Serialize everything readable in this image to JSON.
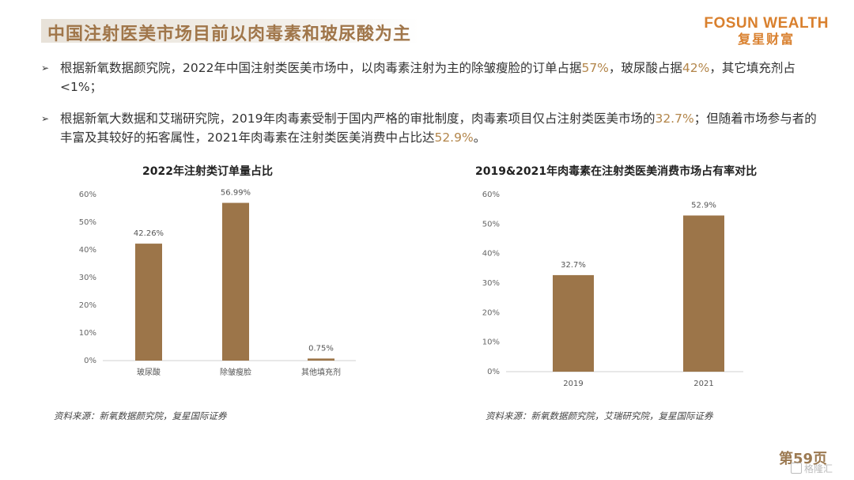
{
  "header": {
    "title": "中国注射医美市场目前以肉毒素和玻尿酸为主",
    "logo_en": "FOSUN WEALTH",
    "logo_cn": "复星财富"
  },
  "bullets": [
    {
      "parts": [
        {
          "text": "根据新氧数据颜究院，2022年中国注射类医美市场中，以肉毒素注射为主的除皱瘦脸的订单占据",
          "hl": false
        },
        {
          "text": "57%",
          "hl": true
        },
        {
          "text": "，玻尿酸占据",
          "hl": false
        },
        {
          "text": "42%",
          "hl": true
        },
        {
          "text": "，其它填充剂占<1%；",
          "hl": false
        }
      ]
    },
    {
      "parts": [
        {
          "text": "根据新氧大数据和艾瑞研究院，2019年肉毒素受制于国内严格的审批制度，肉毒素项目仅占注射类医美市场的",
          "hl": false
        },
        {
          "text": "32.7%",
          "hl": true
        },
        {
          "text": "；但随着市场参与者的丰富及其较好的拓客属性，2021年肉毒素在注射类医美消费中占比达",
          "hl": false
        },
        {
          "text": "52.9%",
          "hl": true
        },
        {
          "text": "。",
          "hl": false
        }
      ]
    }
  ],
  "chart_data": [
    {
      "type": "bar",
      "title": "2022年注射类订单量占比",
      "categories": [
        "玻尿酸",
        "除皱瘦脸",
        "其他填充剂"
      ],
      "values": [
        42.26,
        56.99,
        0.75
      ],
      "data_labels": [
        "42.26%",
        "56.99%",
        "0.75%"
      ],
      "ylim": [
        0,
        60
      ],
      "yticks": [
        "0%",
        "10%",
        "20%",
        "30%",
        "40%",
        "50%",
        "60%"
      ],
      "bar_color": "#9c7549",
      "grid": false,
      "source": "资料来源：新氧数据颜究院，复星国际证券"
    },
    {
      "type": "bar",
      "title": "2019&2021年肉毒素在注射类医美消费市场占有率对比",
      "categories": [
        "2019",
        "2021"
      ],
      "values": [
        32.7,
        52.9
      ],
      "data_labels": [
        "32.7%",
        "52.9%"
      ],
      "ylim": [
        0,
        60
      ],
      "yticks": [
        "0%",
        "10%",
        "20%",
        "30%",
        "40%",
        "50%",
        "60%"
      ],
      "bar_color": "#9c7549",
      "grid": false,
      "source": "资料来源：新氧数据颜究院，艾瑞研究院，复星国际证券"
    }
  ],
  "footer": {
    "page": "第59页",
    "watermark": "格隆汇"
  }
}
